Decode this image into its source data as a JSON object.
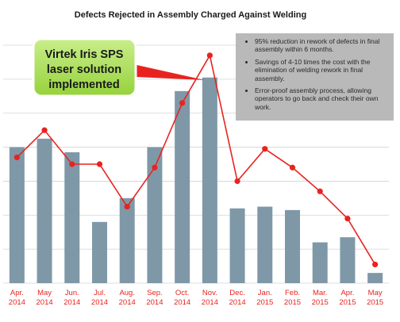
{
  "chart_data": {
    "type": "bar",
    "title": "Defects Rejected in Assembly Charged Against Welding",
    "categories": [
      [
        "Apr.",
        "2014"
      ],
      [
        "May",
        "2014"
      ],
      [
        "Jun.",
        "2014"
      ],
      [
        "Jul.",
        "2014"
      ],
      [
        "Aug.",
        "2014"
      ],
      [
        "Sep.",
        "2014"
      ],
      [
        "Oct.",
        "2014"
      ],
      [
        "Nov.",
        "2014"
      ],
      [
        "Dec.",
        "2014"
      ],
      [
        "Jan.",
        "2015"
      ],
      [
        "Feb.",
        "2015"
      ],
      [
        "Mar.",
        "2015"
      ],
      [
        "Apr.",
        "2015"
      ],
      [
        "May",
        "2015"
      ]
    ],
    "series": [
      {
        "type": "bar",
        "color": "#7f98a8",
        "values": [
          40,
          42.5,
          38.5,
          18,
          25,
          40,
          56.5,
          60.5,
          22,
          22.5,
          21.5,
          12,
          13.5,
          3
        ]
      },
      {
        "type": "line",
        "color": "#e8231f",
        "values": [
          37,
          45,
          35,
          35,
          22.5,
          34,
          53,
          67,
          30,
          39.5,
          34,
          27,
          19,
          5.5
        ]
      }
    ],
    "ylim": [
      0,
      70
    ],
    "grid": true,
    "annotations": {
      "callout": [
        "Virtek Iris SPS",
        "laser solution",
        "implemented"
      ],
      "notes": [
        "95% reduction in rework of defects in final assembly within 6 months.",
        "Savings of 4-10 times the cost with the elimination of welding rework in final assembly.",
        "Error-proof assembly process, allowing operators to go back and check their own work."
      ]
    }
  }
}
